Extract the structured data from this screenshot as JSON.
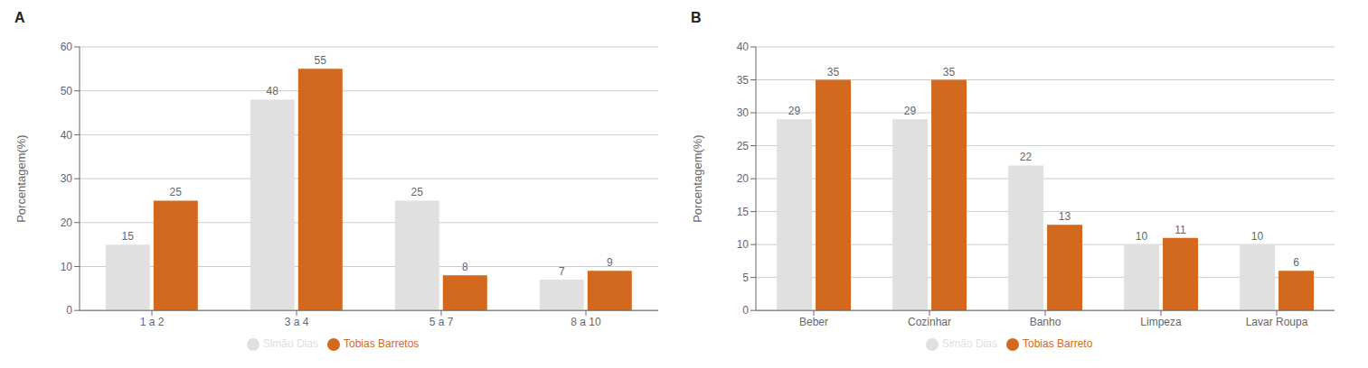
{
  "chart_data": [
    {
      "type": "bar",
      "title": "A",
      "ylabel": "Porcentagem(%)",
      "categories": [
        "1 a 2",
        "3 a 4",
        "5 a 7",
        "8 a 10"
      ],
      "series": [
        {
          "name": "Simão Dias",
          "color": "#e0e0e0",
          "values": [
            15,
            48,
            25,
            7
          ]
        },
        {
          "name": "Tobias Barretos",
          "color": "#d2691e",
          "values": [
            25,
            55,
            8,
            9
          ]
        }
      ],
      "ylim": [
        0,
        60
      ],
      "yticks": [
        0,
        10,
        20,
        30,
        40,
        50,
        60
      ],
      "grid": true,
      "data_labels": true,
      "legend": "bottom"
    },
    {
      "type": "bar",
      "title": "B",
      "ylabel": "Porcentagem(%)",
      "categories": [
        "Beber",
        "Cozinhar",
        "Banho",
        "Limpeza",
        "Lavar Roupa"
      ],
      "series": [
        {
          "name": "Simão Dias",
          "color": "#e0e0e0",
          "values": [
            29,
            29,
            22,
            10,
            10
          ]
        },
        {
          "name": "Tobias Barreto",
          "color": "#d2691e",
          "values": [
            35,
            35,
            13,
            11,
            6
          ]
        }
      ],
      "ylim": [
        0,
        40
      ],
      "yticks": [
        0,
        5,
        10,
        15,
        20,
        25,
        30,
        35,
        40
      ],
      "grid": true,
      "data_labels": true,
      "legend": "bottom"
    }
  ]
}
